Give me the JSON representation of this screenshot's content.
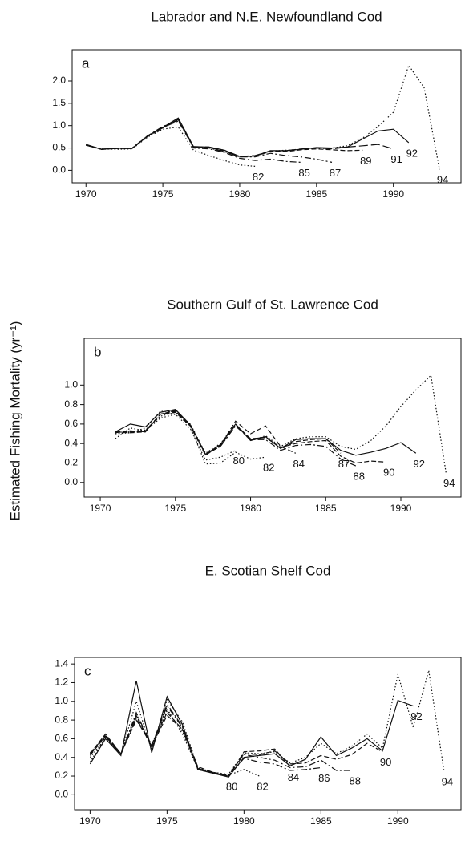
{
  "ylabel": "Estimated Fishing Mortality (yr⁻¹)",
  "chart_data": [
    {
      "type": "line",
      "title": "Labrador and N.E. Newfoundland Cod",
      "panel": "a",
      "x": [
        1970,
        1971,
        1972,
        1973,
        1974,
        1975,
        1976,
        1977,
        1978,
        1979,
        1980,
        1981,
        1982,
        1983,
        1984,
        1985,
        1986,
        1987,
        1988,
        1989,
        1990,
        1991,
        1992,
        1993
      ],
      "xlim": [
        1969.1,
        1994.4
      ],
      "xticks": [
        1970,
        1975,
        1980,
        1985,
        1990
      ],
      "ylim": [
        -0.28,
        2.7
      ],
      "yticks": [
        {
          "value": 0,
          "label": "0.0"
        },
        0.5,
        {
          "value": 1,
          "label": "1.0"
        },
        1.5,
        {
          "value": 2,
          "label": "2.0"
        }
      ],
      "color": "#111",
      "series": [
        {
          "name": "82",
          "dash": "dotted",
          "values": [
            0.57,
            0.48,
            0.47,
            0.48,
            0.74,
            0.92,
            0.97,
            0.45,
            0.33,
            0.22,
            0.12,
            0.09,
            null,
            null,
            null,
            null,
            null,
            null,
            null,
            null,
            null,
            null,
            null,
            null
          ]
        },
        {
          "name": "85",
          "dash": "dashdot",
          "values": [
            0.57,
            0.47,
            0.5,
            0.5,
            0.77,
            0.98,
            1.12,
            0.5,
            0.48,
            0.4,
            0.27,
            0.22,
            0.25,
            0.2,
            0.18,
            null,
            null,
            null,
            null,
            null,
            null,
            null,
            null,
            null
          ]
        },
        {
          "name": "87",
          "dash": "dashdot",
          "values": [
            0.56,
            0.47,
            0.49,
            0.49,
            0.76,
            0.96,
            1.1,
            0.52,
            0.5,
            0.42,
            0.3,
            0.3,
            0.38,
            0.33,
            0.3,
            0.25,
            0.18,
            null,
            null,
            null,
            null,
            null,
            null,
            null
          ]
        },
        {
          "name": "89",
          "dash": "dashed",
          "values": [
            0.57,
            0.47,
            0.49,
            0.49,
            0.76,
            0.95,
            1.13,
            0.52,
            0.51,
            0.43,
            0.3,
            0.32,
            0.42,
            0.42,
            0.46,
            0.48,
            0.46,
            0.44,
            0.45,
            null,
            null,
            null,
            null,
            null
          ]
        },
        {
          "name": "91",
          "dash": "longdash",
          "values": [
            0.57,
            0.47,
            0.49,
            0.49,
            0.76,
            0.95,
            1.14,
            0.53,
            0.52,
            0.45,
            0.31,
            0.33,
            0.43,
            0.44,
            0.48,
            0.5,
            0.48,
            0.52,
            0.55,
            0.58,
            0.48,
            null,
            null,
            null
          ]
        },
        {
          "name": "92",
          "dash": "solid",
          "values": [
            0.58,
            0.47,
            0.5,
            0.49,
            0.77,
            0.96,
            1.17,
            0.53,
            0.52,
            0.45,
            0.31,
            0.32,
            0.44,
            0.44,
            0.47,
            0.51,
            0.5,
            0.52,
            0.7,
            0.88,
            0.92,
            0.62,
            null,
            null
          ]
        },
        {
          "name": "94",
          "dash": "dotted",
          "values": [
            0.56,
            0.47,
            0.48,
            0.48,
            0.76,
            0.95,
            1.15,
            0.52,
            0.51,
            0.44,
            0.31,
            0.32,
            0.43,
            0.45,
            0.47,
            0.5,
            0.5,
            0.55,
            0.72,
            0.98,
            1.3,
            2.35,
            1.85,
            0.02
          ]
        }
      ]
    },
    {
      "type": "line",
      "title": "Southern Gulf of St. Lawrence Cod",
      "panel": "b",
      "x": [
        1970,
        1971,
        1972,
        1973,
        1974,
        1975,
        1976,
        1977,
        1978,
        1979,
        1980,
        1981,
        1982,
        1983,
        1984,
        1985,
        1986,
        1987,
        1988,
        1989,
        1990,
        1991,
        1992,
        1993
      ],
      "xlim": [
        1968.93,
        1994.0
      ],
      "xticks": [
        1970,
        1975,
        1980,
        1985,
        1990
      ],
      "ylim": [
        -0.15,
        1.48
      ],
      "yticks": [
        {
          "value": 0,
          "label": "0.0"
        },
        0.2,
        0.4,
        0.6,
        0.8,
        {
          "value": 1,
          "label": "1.0"
        }
      ],
      "color": "#111",
      "series": [
        {
          "name": "80",
          "dash": "dotted",
          "values": [
            null,
            0.45,
            0.56,
            0.53,
            0.66,
            0.7,
            0.55,
            0.23,
            0.26,
            0.33,
            null,
            null,
            null,
            null,
            null,
            null,
            null,
            null,
            null,
            null,
            null,
            null,
            null,
            null
          ]
        },
        {
          "name": "82",
          "dash": "dotted",
          "values": [
            null,
            0.5,
            0.52,
            0.54,
            0.68,
            0.72,
            0.57,
            0.19,
            0.2,
            0.31,
            0.24,
            0.26,
            null,
            null,
            null,
            null,
            null,
            null,
            null,
            null,
            null,
            null,
            null,
            null
          ]
        },
        {
          "name": "84",
          "dash": "dashed",
          "values": [
            null,
            0.52,
            0.51,
            0.52,
            0.7,
            0.72,
            0.58,
            0.28,
            0.38,
            0.63,
            0.5,
            0.58,
            0.37,
            0.3,
            null,
            null,
            null,
            null,
            null,
            null,
            null,
            null,
            null,
            null
          ]
        },
        {
          "name": "87",
          "dash": "dashed",
          "values": [
            null,
            0.52,
            0.52,
            0.52,
            0.7,
            0.73,
            0.58,
            0.29,
            0.37,
            0.6,
            0.44,
            0.47,
            0.35,
            0.42,
            0.44,
            0.45,
            0.3,
            null,
            null,
            null,
            null,
            null,
            null,
            null
          ]
        },
        {
          "name": "88",
          "dash": "dashdot",
          "values": [
            null,
            0.51,
            0.53,
            0.52,
            0.7,
            0.74,
            0.59,
            0.29,
            0.37,
            0.58,
            0.44,
            0.44,
            0.33,
            0.38,
            0.39,
            0.37,
            0.24,
            0.17,
            null,
            null,
            null,
            null,
            null,
            null
          ]
        },
        {
          "name": "90",
          "dash": "dashed",
          "values": [
            null,
            0.52,
            0.52,
            0.53,
            0.7,
            0.74,
            0.59,
            0.29,
            0.38,
            0.59,
            0.45,
            0.46,
            0.36,
            0.4,
            0.42,
            0.43,
            0.27,
            0.2,
            0.22,
            0.21,
            null,
            null,
            null,
            null
          ]
        },
        {
          "name": "92",
          "dash": "solid",
          "values": [
            null,
            0.52,
            0.6,
            0.57,
            0.72,
            0.75,
            0.59,
            0.29,
            0.39,
            0.6,
            0.43,
            0.47,
            0.35,
            0.44,
            0.45,
            0.45,
            0.33,
            0.28,
            0.31,
            0.35,
            0.41,
            0.3,
            null,
            null
          ]
        },
        {
          "name": "94",
          "dash": "dotted",
          "values": [
            null,
            0.5,
            0.51,
            0.56,
            0.73,
            0.73,
            0.6,
            0.3,
            0.4,
            0.6,
            0.43,
            0.48,
            0.37,
            0.45,
            0.47,
            0.47,
            0.37,
            0.34,
            0.43,
            0.58,
            0.78,
            0.95,
            1.1,
            0.1
          ]
        }
      ]
    },
    {
      "type": "line",
      "title": "E. Scotian Shelf Cod",
      "panel": "c",
      "x": [
        1970,
        1971,
        1972,
        1973,
        1974,
        1975,
        1976,
        1977,
        1978,
        1979,
        1980,
        1981,
        1982,
        1983,
        1984,
        1985,
        1986,
        1987,
        1988,
        1989,
        1990,
        1991,
        1992,
        1993
      ],
      "xlim": [
        1968.99,
        1994.1
      ],
      "xticks": [
        1970,
        1975,
        1980,
        1985,
        1990
      ],
      "ylim": [
        -0.16,
        1.47
      ],
      "yticks": [
        {
          "value": 0,
          "label": "0.0"
        },
        0.2,
        0.4,
        0.6,
        0.8,
        {
          "value": 1,
          "label": "1.0"
        },
        1.2,
        1.4
      ],
      "color": "#111",
      "series": [
        {
          "name": "80",
          "dash": "dotted",
          "values": [
            0.45,
            0.62,
            0.43,
            0.87,
            0.5,
            0.92,
            0.65,
            0.28,
            0.24,
            0.2,
            null,
            null,
            null,
            null,
            null,
            null,
            null,
            null,
            null,
            null,
            null,
            null,
            null,
            null
          ]
        },
        {
          "name": "82",
          "dash": "dotted",
          "values": [
            0.4,
            0.6,
            0.43,
            0.85,
            0.5,
            0.9,
            0.68,
            0.27,
            0.23,
            0.21,
            0.27,
            0.2,
            null,
            null,
            null,
            null,
            null,
            null,
            null,
            null,
            null,
            null,
            null,
            null
          ]
        },
        {
          "name": "84",
          "dash": "dashed",
          "values": [
            0.42,
            0.63,
            0.44,
            0.85,
            0.52,
            0.85,
            0.7,
            0.28,
            0.24,
            0.19,
            0.46,
            0.47,
            0.49,
            0.3,
            null,
            null,
            null,
            null,
            null,
            null,
            null,
            null,
            null,
            null
          ]
        },
        {
          "name": "86",
          "dash": "dashdot",
          "values": [
            0.44,
            0.64,
            0.44,
            0.82,
            0.52,
            0.95,
            0.72,
            0.28,
            0.23,
            0.2,
            0.39,
            0.35,
            0.33,
            0.26,
            0.27,
            0.29,
            null,
            null,
            null,
            null,
            null,
            null,
            null,
            null
          ]
        },
        {
          "name": "88",
          "dash": "dashdot",
          "values": [
            0.43,
            0.63,
            0.43,
            0.88,
            0.52,
            0.97,
            0.73,
            0.28,
            0.24,
            0.21,
            0.43,
            0.4,
            0.37,
            0.29,
            0.3,
            0.37,
            0.26,
            0.26,
            null,
            null,
            null,
            null,
            null,
            null
          ]
        },
        {
          "name": "90",
          "dash": "dashed",
          "values": [
            0.44,
            0.65,
            0.44,
            0.8,
            0.54,
            0.88,
            0.7,
            0.3,
            0.24,
            0.2,
            0.44,
            0.43,
            0.47,
            0.33,
            0.34,
            0.42,
            0.38,
            0.43,
            0.55,
            0.46,
            null,
            null,
            null,
            null
          ]
        },
        {
          "name": "92",
          "dash": "solid",
          "values": [
            0.33,
            0.6,
            0.42,
            1.22,
            0.45,
            1.05,
            0.75,
            0.27,
            0.23,
            0.19,
            0.4,
            0.42,
            0.44,
            0.31,
            0.38,
            0.62,
            0.42,
            0.5,
            0.6,
            0.47,
            1.01,
            0.95,
            null,
            null
          ]
        },
        {
          "name": "94",
          "dash": "dotted",
          "values": [
            0.35,
            0.62,
            0.43,
            1.0,
            0.48,
            1.02,
            0.78,
            0.29,
            0.24,
            0.22,
            0.45,
            0.44,
            0.46,
            0.34,
            0.4,
            0.55,
            0.44,
            0.52,
            0.65,
            0.5,
            1.29,
            0.72,
            1.33,
            0.25
          ]
        }
      ]
    }
  ]
}
